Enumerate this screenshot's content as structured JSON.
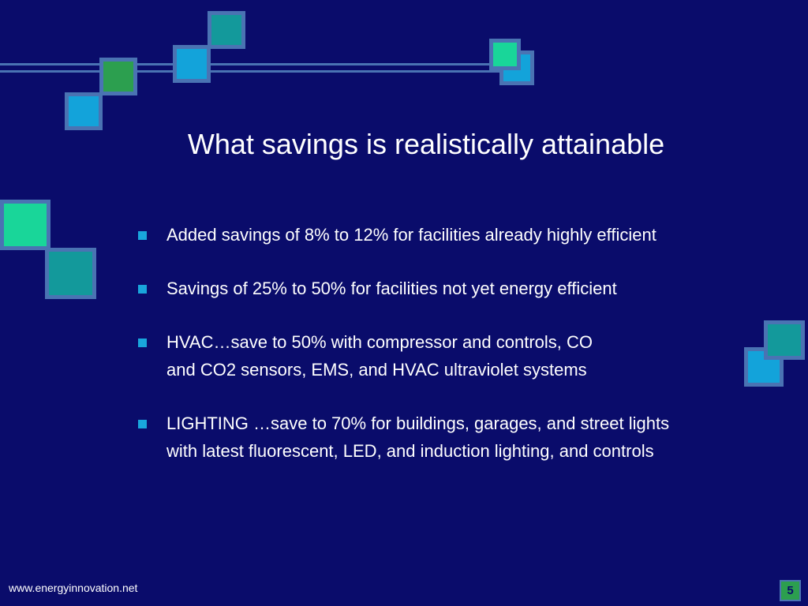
{
  "slide": {
    "title": "What savings is realistically attainable",
    "bullets": [
      {
        "lines": [
          "Added savings of 8% to 12% for facilities already highly efficient"
        ]
      },
      {
        "lines": [
          "Savings of 25% to 50% for facilities not yet energy efficient"
        ]
      },
      {
        "lines": [
          "HVAC…save to 50% with compressor and controls, CO",
          "and  CO2 sensors,  EMS, and HVAC ultraviolet  systems"
        ]
      },
      {
        "lines": [
          "LIGHTING …save to 70% for buildings, garages, and street lights",
          "with latest fluorescent, LED, and induction lighting,  and controls"
        ]
      }
    ],
    "footer_url": "www.energyinnovation.net",
    "slide_number": "5"
  },
  "colors": {
    "background": "#0a0c6b",
    "accent_border": "#4a73b3",
    "bullet": "#19a6dc",
    "square_teal": "#13999b",
    "square_blue": "#13a3da",
    "square_green": "#2c9f4f",
    "square_mint": "#19d699"
  }
}
